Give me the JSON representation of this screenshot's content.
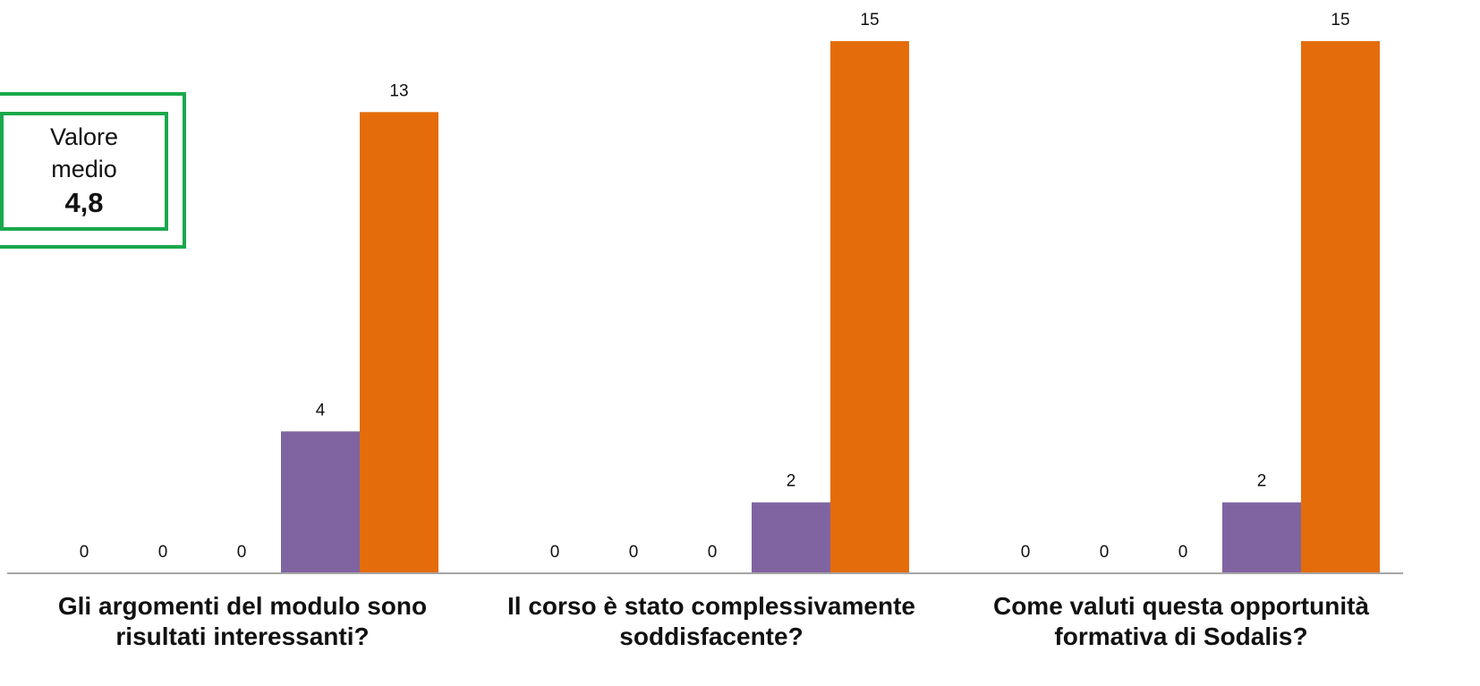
{
  "chart_data": {
    "type": "bar",
    "categories": [
      "Gli argomenti del modulo sono risultati interessanti?",
      "Il corso è stato complessivamente soddisfacente?",
      "Come valuti questa opportunità formativa di Sodalis?"
    ],
    "series": [
      {
        "values": [
          0,
          0,
          0
        ],
        "color": "#ffffff"
      },
      {
        "values": [
          0,
          0,
          0
        ],
        "color": "#ffffff"
      },
      {
        "values": [
          0,
          0,
          0
        ],
        "color": "#ffffff"
      },
      {
        "values": [
          4,
          2,
          2
        ],
        "color": "#8064a2"
      },
      {
        "values": [
          13,
          15,
          15
        ],
        "color": "#e46c0a"
      }
    ],
    "data_labels": true,
    "ylim": [
      0,
      15
    ],
    "grid": false,
    "legend": "none"
  },
  "category_label_lines": [
    [
      "Gli argomenti del modulo sono",
      "risultati interessanti?"
    ],
    [
      "Il corso è stato complessivamente",
      "soddisfacente?"
    ],
    [
      "Come valuti questa opportunità",
      "formativa di Sodalis?"
    ]
  ],
  "badge": {
    "line1": "Valore",
    "line2": "medio",
    "value": "4,8",
    "border_color": "#1aa84c"
  },
  "axis_color": "#a6a6a6"
}
